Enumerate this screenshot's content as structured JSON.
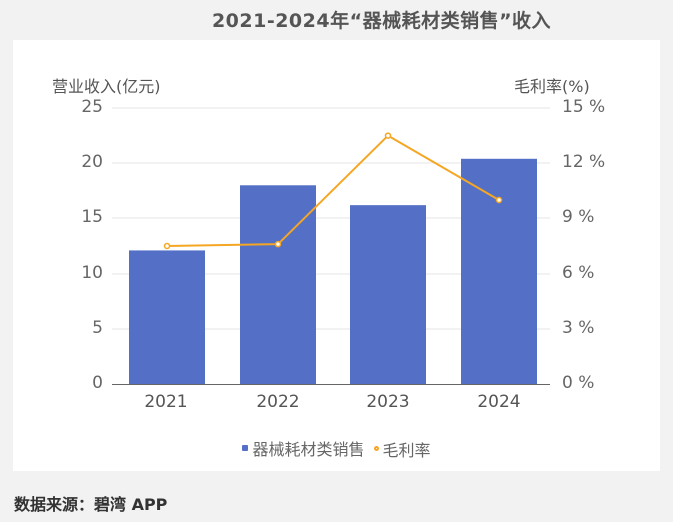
{
  "title": "2021-2024年“器械耗材类销售”收入",
  "footer": "数据来源：碧湾 APP",
  "chart_data": {
    "type": "bar",
    "title": "2021-2024年“器械耗材类销售”收入",
    "categories": [
      "2021",
      "2022",
      "2023",
      "2024"
    ],
    "series": [
      {
        "name": "器械耗材类销售",
        "type": "bar",
        "axis": "left",
        "color": "#5470c6",
        "values": [
          12.1,
          18.0,
          16.2,
          20.4
        ]
      },
      {
        "name": "毛利率",
        "type": "line",
        "axis": "right",
        "color": "#f5a623",
        "values": [
          7.5,
          7.6,
          13.5,
          10.0
        ]
      }
    ],
    "ylabel": "营业收入(亿元)",
    "ylabel_right": "毛利率(%)",
    "ylim": [
      0,
      25
    ],
    "ylim_right": [
      0,
      15
    ],
    "yticks": [
      "0",
      "5",
      "10",
      "15",
      "20",
      "25"
    ],
    "yticks_right": [
      "0 %",
      "3 %",
      "6 %",
      "9 %",
      "12 %",
      "15 %"
    ],
    "grid": true,
    "legend_position": "bottom"
  },
  "legend": {
    "bar": "器械耗材类销售",
    "line": "毛利率"
  }
}
